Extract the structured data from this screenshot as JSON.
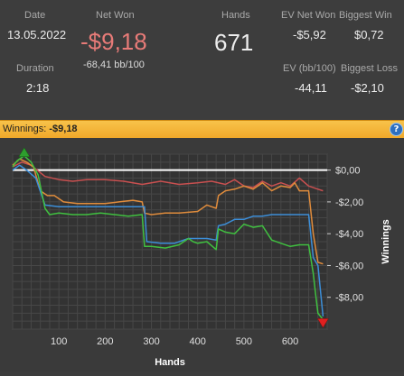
{
  "stats": {
    "date_label": "Date",
    "date_value": "13.05.2022",
    "duration_label": "Duration",
    "duration_value": "2:18",
    "net_won_label": "Net Won",
    "net_won_value": "-$9,18",
    "net_won_bb": "-68,41 bb/100",
    "hands_label": "Hands",
    "hands_value": "671",
    "ev_net_won_label": "EV Net Won",
    "ev_net_won_value": "-$5,92",
    "biggest_win_label": "Biggest Win",
    "biggest_win_value": "$0,72",
    "ev_bb_label": "EV (bb/100)",
    "ev_bb_value": "-44,11",
    "biggest_loss_label": "Biggest Loss",
    "biggest_loss_value": "-$2,10"
  },
  "winnings_bar": {
    "label": "Winnings:",
    "value": "-$9,18",
    "help_icon": "?"
  },
  "colors": {
    "green": "#40c040",
    "orange": "#e08c3c",
    "blue": "#3c8ed8",
    "red": "#c85050",
    "bar": "#f5b53a",
    "net_won": "#e87b78"
  },
  "chart_data": {
    "type": "line",
    "xlabel": "Hands",
    "ylabel": "Winnings",
    "xlim": [
      0,
      680
    ],
    "ylim": [
      -10.0,
      1.0
    ],
    "x_ticks": [
      "100",
      "200",
      "300",
      "400",
      "500",
      "600"
    ],
    "x_tick_values": [
      100,
      200,
      300,
      400,
      500,
      600
    ],
    "y_ticks": [
      "$0,00",
      "-$2,00",
      "-$4,00",
      "-$6,00",
      "-$8,00"
    ],
    "y_tick_values": [
      0,
      -2,
      -4,
      -6,
      -8
    ],
    "grid": true,
    "series": [
      {
        "key": "red",
        "x": [
          0,
          20,
          40,
          70,
          100,
          130,
          160,
          200,
          240,
          280,
          320,
          360,
          400,
          430,
          460,
          480,
          500,
          520,
          540,
          560,
          580,
          600,
          620,
          640,
          660,
          671
        ],
        "y": [
          0.2,
          0.5,
          0.3,
          -0.4,
          -0.6,
          -0.7,
          -0.6,
          -0.6,
          -0.7,
          -0.9,
          -0.7,
          -0.9,
          -0.8,
          -0.7,
          -0.9,
          -0.6,
          -1.0,
          -1.1,
          -0.7,
          -1.0,
          -0.8,
          -1.0,
          -0.5,
          -1.0,
          -1.2,
          -1.3
        ]
      },
      {
        "key": "orange",
        "x": [
          0,
          15,
          30,
          45,
          60,
          75,
          90,
          110,
          140,
          170,
          200,
          230,
          260,
          280,
          285,
          300,
          330,
          360,
          400,
          420,
          440,
          445,
          460,
          480,
          500,
          520,
          540,
          560,
          580,
          600,
          610,
          620,
          640,
          650,
          660,
          671
        ],
        "y": [
          0.3,
          0.7,
          0.5,
          0.2,
          -1.3,
          -1.6,
          -1.6,
          -2.0,
          -2.1,
          -2.1,
          -2.1,
          -2.0,
          -1.9,
          -2.0,
          -2.7,
          -2.8,
          -2.7,
          -2.7,
          -2.6,
          -2.2,
          -2.4,
          -1.6,
          -1.3,
          -1.2,
          -1.0,
          -1.2,
          -0.8,
          -1.3,
          -1.0,
          -1.1,
          -0.8,
          -1.3,
          -1.3,
          -4.0,
          -5.8,
          -5.9
        ]
      },
      {
        "key": "blue",
        "x": [
          0,
          15,
          30,
          50,
          70,
          100,
          140,
          180,
          220,
          260,
          285,
          290,
          320,
          350,
          380,
          420,
          440,
          445,
          460,
          480,
          500,
          520,
          540,
          560,
          600,
          620,
          640,
          650,
          660,
          671
        ],
        "y": [
          0.0,
          0.3,
          0.0,
          -0.5,
          -2.2,
          -2.3,
          -2.3,
          -2.3,
          -2.3,
          -2.3,
          -2.3,
          -4.5,
          -4.6,
          -4.6,
          -4.3,
          -4.3,
          -4.4,
          -3.5,
          -3.4,
          -3.1,
          -3.1,
          -2.9,
          -2.9,
          -2.8,
          -2.8,
          -2.8,
          -2.8,
          -5.5,
          -6.0,
          -9.2
        ]
      },
      {
        "key": "green",
        "x": [
          0,
          10,
          25,
          40,
          55,
          70,
          80,
          100,
          130,
          160,
          190,
          220,
          250,
          280,
          285,
          300,
          330,
          360,
          380,
          390,
          400,
          420,
          440,
          445,
          460,
          480,
          500,
          520,
          540,
          560,
          580,
          600,
          620,
          640,
          650,
          655,
          660,
          671
        ],
        "y": [
          0.2,
          0.6,
          0.9,
          0.5,
          -0.3,
          -2.4,
          -2.8,
          -2.7,
          -2.8,
          -2.8,
          -2.7,
          -2.8,
          -2.9,
          -2.8,
          -4.8,
          -4.8,
          -4.9,
          -4.7,
          -4.3,
          -4.5,
          -4.6,
          -4.5,
          -5.0,
          -3.7,
          -3.9,
          -4.0,
          -3.4,
          -3.6,
          -3.5,
          -4.4,
          -4.6,
          -4.8,
          -4.7,
          -4.7,
          -6.5,
          -7.8,
          -9.0,
          -9.4
        ]
      }
    ]
  }
}
